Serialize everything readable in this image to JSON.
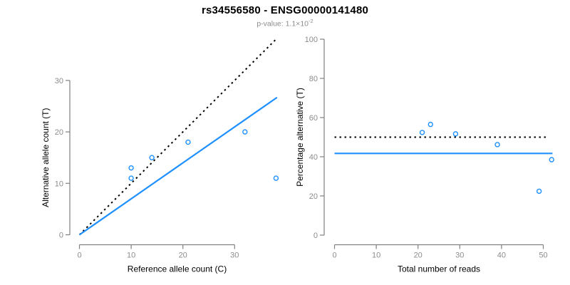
{
  "header": {
    "title": "rs34556580 - ENSG00000141480",
    "pvalue_prefix": "p-value: 1.1×10",
    "pvalue_exponent": "-2"
  },
  "colors": {
    "accent_blue": "#1E90FF",
    "dotted_black": "#000000",
    "axis_gray": "#808080",
    "tick_label_gray": "#8C8C8C",
    "axis_title_black": "#000000"
  },
  "chart_data": [
    {
      "type": "scatter",
      "title": "",
      "xlabel": "Reference allele count (C)",
      "ylabel": "Alternative allele count (T)",
      "xlim": [
        0,
        38.5
      ],
      "ylim": [
        0,
        38.5
      ],
      "x_ticks": [
        0,
        10,
        20,
        30
      ],
      "y_ticks": [
        0,
        10,
        20,
        30
      ],
      "grid": false,
      "point_color": "#1E90FF",
      "points": [
        [
          10,
          13
        ],
        [
          10,
          11
        ],
        [
          14,
          15
        ],
        [
          21,
          18
        ],
        [
          32,
          20
        ],
        [
          38,
          11
        ]
      ],
      "lines": [
        {
          "name": "identity-line",
          "style": "dotted",
          "color": "#000000",
          "from": [
            0,
            0
          ],
          "to": [
            38.2,
            38.2
          ]
        },
        {
          "name": "regression-line",
          "style": "solid",
          "color": "#1E90FF",
          "from": [
            0,
            0
          ],
          "to": [
            38.2,
            26.7
          ]
        }
      ]
    },
    {
      "type": "scatter",
      "title": "",
      "xlabel": "Total number of reads",
      "ylabel": "Percentage alternative (T)",
      "xlim": [
        0,
        52.5
      ],
      "ylim": [
        0,
        100
      ],
      "x_ticks": [
        0,
        10,
        20,
        30,
        40,
        50
      ],
      "y_ticks": [
        0,
        20,
        40,
        60,
        80,
        100
      ],
      "grid": false,
      "point_color": "#1E90FF",
      "points": [
        [
          21,
          52.4
        ],
        [
          23,
          56.5
        ],
        [
          29,
          51.7
        ],
        [
          39,
          46.2
        ],
        [
          49,
          22.4
        ],
        [
          52,
          38.5
        ]
      ],
      "lines": [
        {
          "name": "fifty-percent-line",
          "style": "dotted",
          "color": "#000000",
          "from": [
            0,
            50
          ],
          "to": [
            51,
            50
          ]
        },
        {
          "name": "mean-percentage-line",
          "style": "solid",
          "color": "#1E90FF",
          "from": [
            0,
            41.7
          ],
          "to": [
            52.2,
            41.7
          ]
        }
      ]
    }
  ]
}
